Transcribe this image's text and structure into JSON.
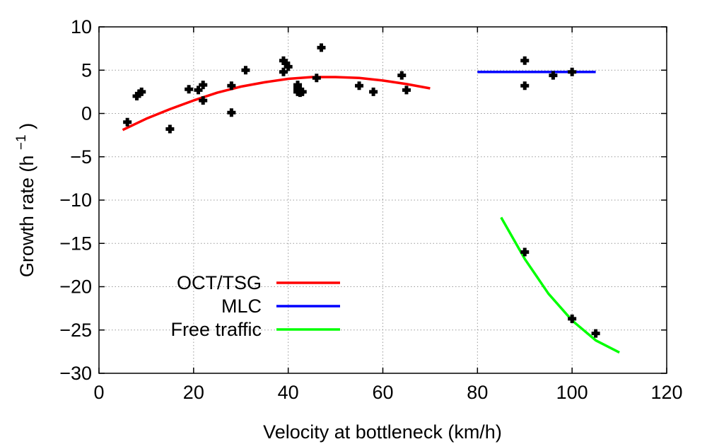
{
  "chart_data": {
    "type": "scatter",
    "title": "",
    "xlabel": "Velocity at bottleneck (km/h)",
    "ylabel": "Growth rate (h",
    "ylabel_sup": "−1",
    "ylabel_close": ")",
    "xlim": [
      0,
      120
    ],
    "ylim": [
      -30,
      10
    ],
    "x_ticks": [
      0,
      20,
      40,
      60,
      80,
      100,
      120
    ],
    "x_tick_labels": [
      "0",
      "20",
      "40",
      "60",
      "80",
      "100",
      "120"
    ],
    "y_ticks": [
      -30,
      -25,
      -20,
      -15,
      -10,
      -5,
      0,
      5,
      10
    ],
    "y_tick_labels": [
      "−30",
      "−25",
      "−20",
      "−15",
      "−10",
      "−5",
      "0",
      "5",
      "10"
    ],
    "grid": true,
    "legend_position": "bottom-left",
    "fits": [
      {
        "name": "OCT/TSG",
        "color": "#ff0000",
        "x": [
          5,
          10,
          15,
          20,
          25,
          30,
          35,
          40,
          45,
          50,
          55,
          60,
          65,
          70
        ],
        "y": [
          -1.9,
          -0.6,
          0.5,
          1.5,
          2.4,
          3.1,
          3.6,
          4.0,
          4.2,
          4.2,
          4.1,
          3.8,
          3.4,
          2.9
        ]
      },
      {
        "name": "MLC",
        "color": "#0000ff",
        "x": [
          80,
          105
        ],
        "y": [
          4.8,
          4.8
        ]
      },
      {
        "name": "Free traffic",
        "color": "#00ff00",
        "x": [
          85,
          90,
          95,
          100,
          105,
          110
        ],
        "y": [
          -12.0,
          -16.8,
          -20.8,
          -23.9,
          -26.2,
          -27.6
        ]
      }
    ],
    "points": {
      "color": "#000000",
      "x": [
        6,
        8,
        8.5,
        9,
        15,
        19,
        21,
        22,
        22,
        28,
        28,
        31,
        39,
        39,
        39.5,
        40,
        42,
        42,
        42,
        42.5,
        43,
        46,
        47,
        55,
        58,
        64,
        65,
        90,
        90,
        96,
        100,
        90,
        100,
        105
      ],
      "y": [
        -1.0,
        2.0,
        2.3,
        2.5,
        -1.8,
        2.8,
        2.7,
        3.3,
        1.5,
        3.2,
        0.1,
        5.0,
        6.1,
        4.8,
        5.8,
        5.4,
        3.3,
        2.9,
        2.5,
        2.4,
        2.5,
        4.1,
        7.6,
        3.2,
        2.5,
        4.4,
        2.7,
        6.1,
        3.2,
        4.4,
        4.8,
        -16.0,
        -23.7,
        -25.4
      ]
    }
  }
}
